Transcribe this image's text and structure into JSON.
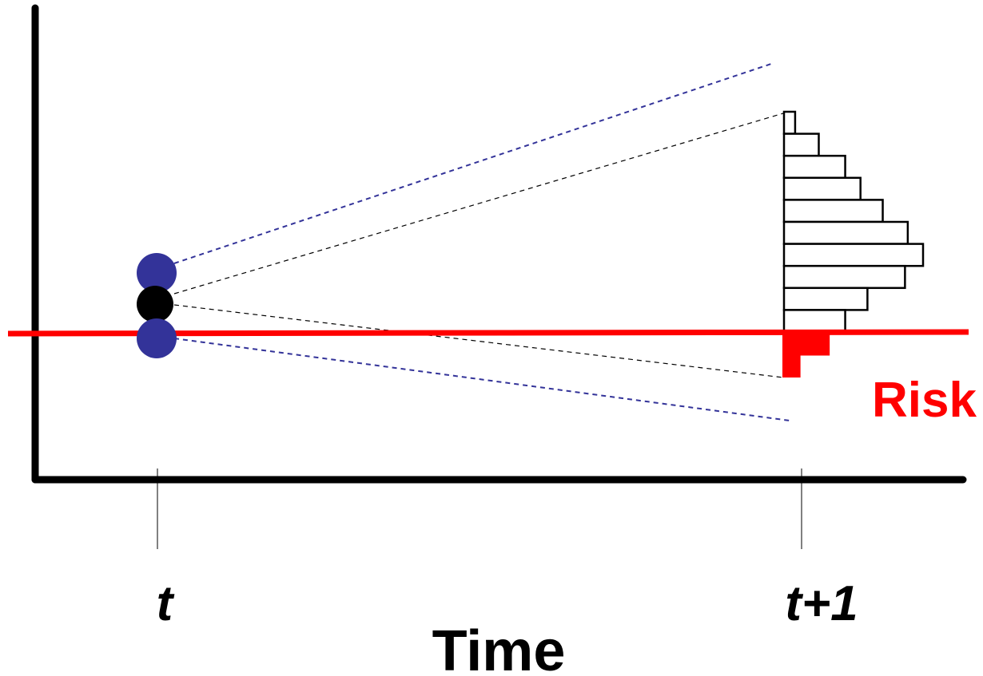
{
  "diagram": {
    "x_axis_title": "Time",
    "tick_labels": {
      "start": "t",
      "end": "t+1"
    },
    "threshold_label": "Risk",
    "colors": {
      "axis": "#000000",
      "threshold": "#ff0000",
      "scenario_points": "#333399",
      "current_point": "#000000",
      "projection_dash_outer": "#333399",
      "projection_dash_inner": "#000000",
      "histogram_fill": "#ffffff",
      "histogram_outline": "#000000",
      "risk_tail_fill": "#ff0000"
    },
    "histogram_bins": {
      "above_threshold": [
        0.08,
        0.25,
        0.44,
        0.55,
        0.71,
        0.89,
        1.0,
        0.87,
        0.6,
        0.44
      ],
      "below_threshold": [
        0.34,
        0.13
      ]
    },
    "icons": [
      "point-marker-icon"
    ]
  }
}
